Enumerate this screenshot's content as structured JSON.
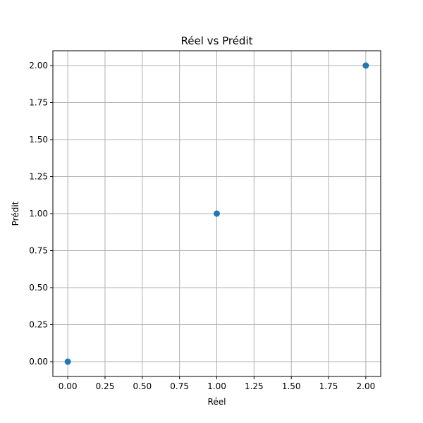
{
  "chart_data": {
    "type": "scatter",
    "title": "Réel vs Prédit",
    "xlabel": "Réel",
    "ylabel": "Prédit",
    "xlim": [
      -0.1,
      2.1
    ],
    "ylim": [
      -0.1,
      2.1
    ],
    "x_ticks": [
      0.0,
      0.25,
      0.5,
      0.75,
      1.0,
      1.25,
      1.5,
      1.75,
      2.0
    ],
    "y_ticks": [
      0.0,
      0.25,
      0.5,
      0.75,
      1.0,
      1.25,
      1.5,
      1.75,
      2.0
    ],
    "x_tick_labels": [
      "0.00",
      "0.25",
      "0.50",
      "0.75",
      "1.00",
      "1.25",
      "1.50",
      "1.75",
      "2.00"
    ],
    "y_tick_labels": [
      "0.00",
      "0.25",
      "0.50",
      "0.75",
      "1.00",
      "1.25",
      "1.50",
      "1.75",
      "2.00"
    ],
    "grid": true,
    "series": [
      {
        "color": "#1f77b4",
        "points": [
          {
            "x": 0,
            "y": 0
          },
          {
            "x": 1,
            "y": 1
          },
          {
            "x": 2,
            "y": 2
          }
        ]
      }
    ]
  }
}
